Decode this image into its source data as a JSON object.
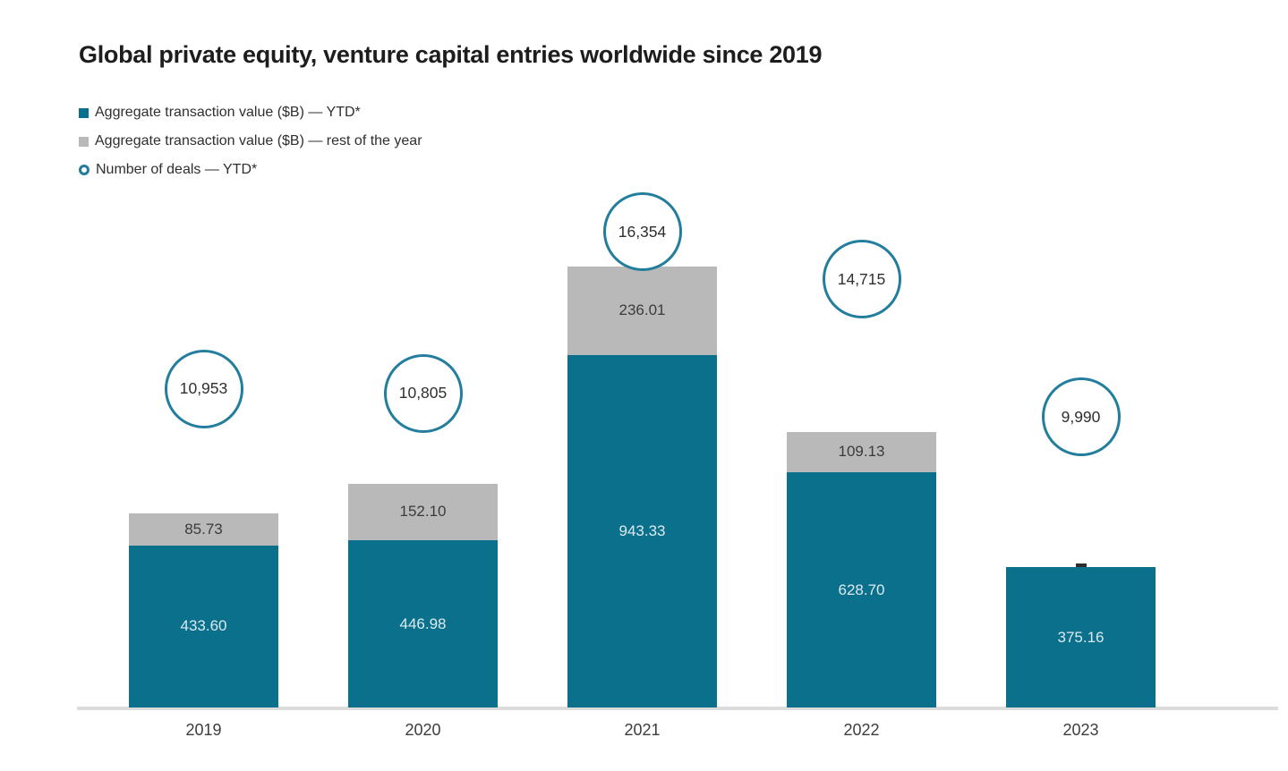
{
  "chart_data": {
    "type": "bar",
    "stacked": true,
    "title": "Global private equity, venture capital entries worldwide since 2019",
    "categories": [
      "2019",
      "2020",
      "2021",
      "2022",
      "2023"
    ],
    "series": [
      {
        "name": "Aggregate transaction value ($B) — YTD*",
        "role": "bar-ytd",
        "color": "#0b708c",
        "values": [
          433.6,
          446.98,
          943.33,
          628.7,
          375.16
        ],
        "labels": [
          "433.60",
          "446.98",
          "943.33",
          "628.70",
          "375.16"
        ]
      },
      {
        "name": "Aggregate transaction value ($B) — rest of the year",
        "role": "bar-rest",
        "color": "#b9b9b9",
        "values": [
          85.73,
          152.1,
          236.01,
          109.13,
          null
        ],
        "labels": [
          "85.73",
          "152.10",
          "236.01",
          "109.13",
          ""
        ]
      },
      {
        "name": "Number of deals — YTD*",
        "role": "deal-count-circle",
        "color": "#227e9c",
        "values": [
          10953,
          10805,
          16354,
          14715,
          9990
        ],
        "labels": [
          "10,953",
          "10,805",
          "16,354",
          "14,715",
          "9,990"
        ]
      }
    ],
    "value_axis": {
      "unit": "$B",
      "visible": false
    },
    "deals_axis": {
      "visible": false
    },
    "grid": false,
    "legend_position": "top-left",
    "annotations": [
      {
        "category": "2023",
        "type": "small-dark-tick-on-bar-top"
      }
    ]
  }
}
